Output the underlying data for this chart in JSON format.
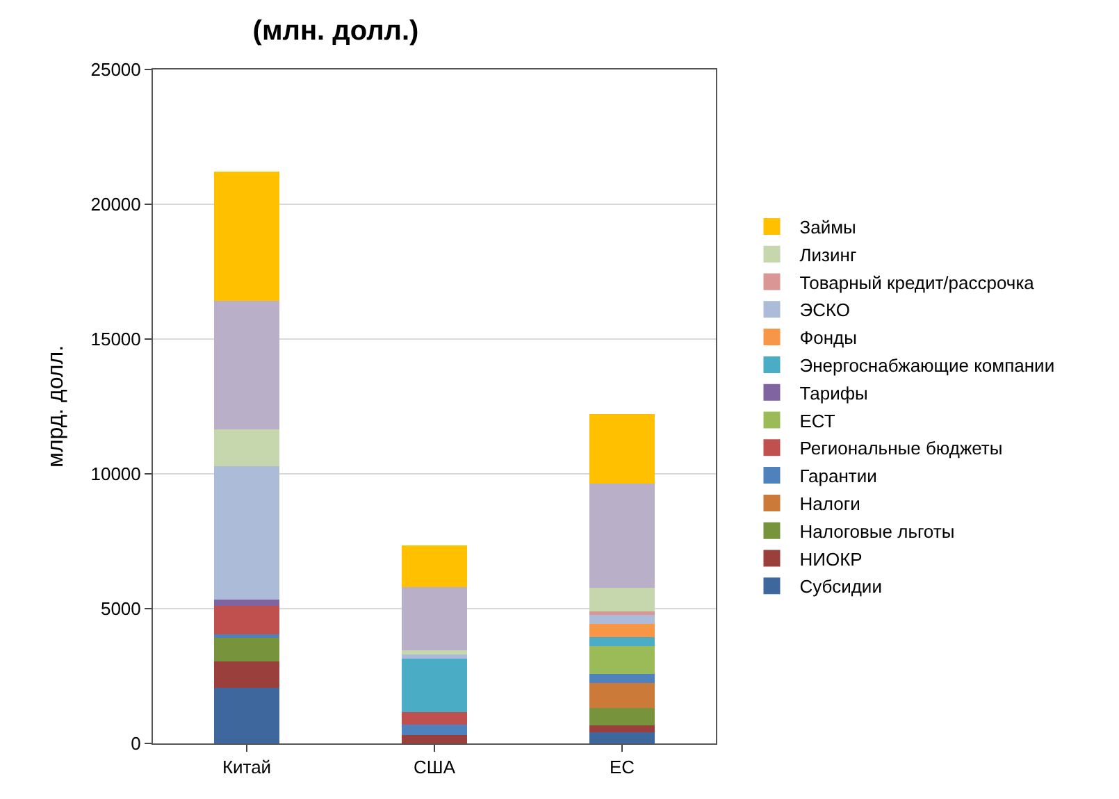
{
  "chart_data": {
    "type": "bar",
    "stacked": true,
    "title": "(млн. долл.)",
    "ylabel": "млрд. долл.",
    "categories": [
      "Китай",
      "США",
      "ЕС"
    ],
    "series": [
      {
        "name": "Субсидии",
        "color": "#3e689d",
        "values": [
          2050,
          0,
          400
        ]
      },
      {
        "name": "НИОКР",
        "color": "#9b3f3d",
        "values": [
          980,
          300,
          270
        ]
      },
      {
        "name": "Налоговые льготы",
        "color": "#77933c",
        "values": [
          880,
          0,
          650
        ]
      },
      {
        "name": "Налоги",
        "color": "#cc7a3a",
        "values": [
          0,
          0,
          930
        ]
      },
      {
        "name": "Гарантии",
        "color": "#4f81bd",
        "values": [
          130,
          400,
          320
        ]
      },
      {
        "name": "Региональные бюджеты",
        "color": "#c0504d",
        "values": [
          1060,
          460,
          0
        ]
      },
      {
        "name": "ЕСТ",
        "color": "#9bbb59",
        "values": [
          0,
          0,
          1050
        ]
      },
      {
        "name": "Тарифы",
        "color": "#8064a2",
        "values": [
          230,
          0,
          0
        ]
      },
      {
        "name": "Энергоснабжающие компании",
        "color": "#4bacc6",
        "values": [
          0,
          1990,
          330
        ]
      },
      {
        "name": "Фонды",
        "color": "#f79646",
        "values": [
          0,
          0,
          480
        ]
      },
      {
        "name": "ЭСКО",
        "color": "#abbbd8",
        "values": [
          4950,
          200,
          350
        ]
      },
      {
        "name": "Товарный кредит/рассрочка",
        "color": "#da9694",
        "values": [
          0,
          0,
          120
        ]
      },
      {
        "name": "Лизинг",
        "color": "#c6d6ad",
        "values": [
          1360,
          100,
          880
        ]
      },
      {
        "color": "#b9afc9",
        "values": [
          4770,
          2360,
          3870
        ]
      },
      {
        "name": "Займы",
        "color": "#ffc000",
        "values": [
          4800,
          1540,
          2560
        ]
      }
    ],
    "ylim": [
      0,
      25000
    ],
    "yticks": [
      0,
      5000,
      10000,
      15000,
      20000,
      25000
    ],
    "grid": "y",
    "legend": "right"
  }
}
